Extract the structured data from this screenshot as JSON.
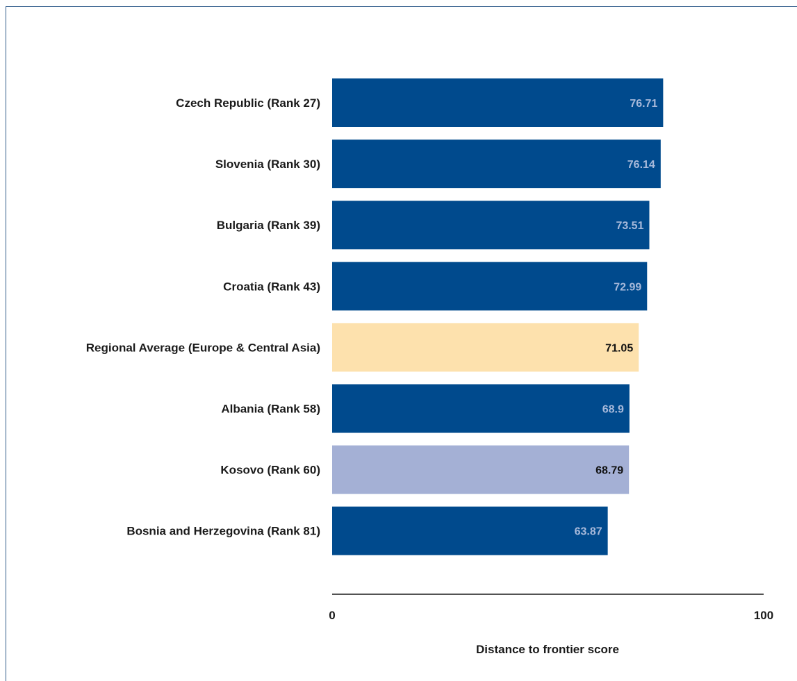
{
  "chart_data": {
    "type": "bar",
    "orientation": "horizontal",
    "title": "",
    "xlabel": "Distance to frontier score",
    "ylabel": "",
    "xlim": [
      0,
      100
    ],
    "x_ticks": [
      "0",
      "100"
    ],
    "grid": false,
    "legend": "none",
    "categories": [
      "Czech Republic (Rank 27)",
      "Slovenia (Rank 30)",
      "Bulgaria (Rank 39)",
      "Croatia (Rank 43)",
      "Regional Average (Europe & Central Asia)",
      "Albania (Rank 58)",
      "Kosovo (Rank 60)",
      "Bosnia and Herzegovina (Rank 81)"
    ],
    "values": [
      76.71,
      76.14,
      73.51,
      72.99,
      71.05,
      68.9,
      68.79,
      63.87
    ],
    "value_labels": [
      "76.71",
      "76.14",
      "73.51",
      "72.99",
      "71.05",
      "68.9",
      "68.79",
      "63.87"
    ],
    "bar_colors": [
      "#004a8d",
      "#004a8d",
      "#004a8d",
      "#004a8d",
      "#fde1ad",
      "#004a8d",
      "#a4b0d5",
      "#004a8d"
    ],
    "label_colors": [
      "#a7b9da",
      "#a7b9da",
      "#a7b9da",
      "#a7b9da",
      "#111111",
      "#a7b9da",
      "#111111",
      "#a7b9da"
    ]
  }
}
